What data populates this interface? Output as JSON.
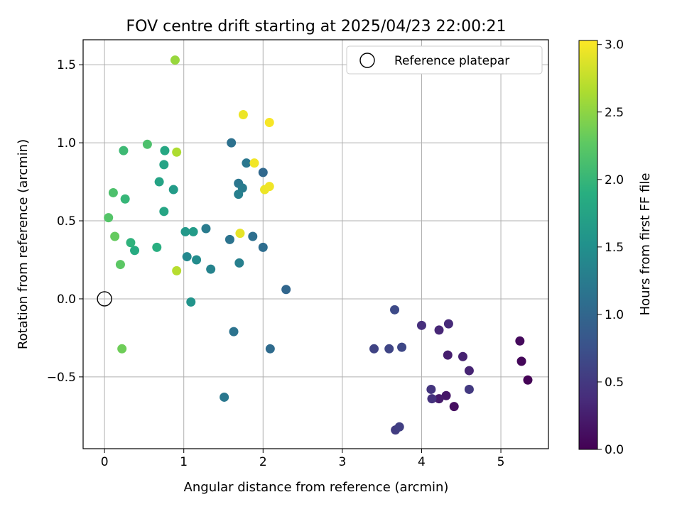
{
  "chart_data": {
    "type": "scatter",
    "title": "FOV centre drift starting at 2025/04/23 22:00:21",
    "xlabel": "Angular distance from reference (arcmin)",
    "ylabel": "Rotation from reference (arcmin)",
    "xlim": [
      -0.27,
      5.6
    ],
    "ylim": [
      -0.96,
      1.66
    ],
    "x_ticks": [
      0,
      1,
      2,
      3,
      4,
      5
    ],
    "x_tick_labels": [
      "0",
      "1",
      "2",
      "3",
      "4",
      "5"
    ],
    "y_ticks": [
      -0.5,
      0.0,
      0.5,
      1.0,
      1.5
    ],
    "y_tick_labels": [
      "−0.5",
      "0.0",
      "0.5",
      "1.0",
      "1.5"
    ],
    "grid": true,
    "legend": {
      "position": "top-right",
      "entries": [
        "Reference platepar"
      ]
    },
    "reference_point": {
      "x": 0,
      "y": 0
    },
    "colorbar": {
      "label": "Hours from first FF file",
      "colormap": "viridis",
      "range": [
        0,
        3.03
      ],
      "ticks": [
        0.0,
        0.5,
        1.0,
        1.5,
        2.0,
        2.5,
        3.0
      ],
      "tick_labels": [
        "0.0",
        "0.5",
        "1.0",
        "1.5",
        "2.0",
        "2.5",
        "3.0"
      ]
    },
    "points": [
      {
        "x": 5.34,
        "y": -0.52,
        "c": 0.02
      },
      {
        "x": 5.26,
        "y": -0.4,
        "c": 0.05
      },
      {
        "x": 5.24,
        "y": -0.27,
        "c": 0.08
      },
      {
        "x": 4.41,
        "y": -0.69,
        "c": 0.12
      },
      {
        "x": 4.31,
        "y": -0.62,
        "c": 0.18
      },
      {
        "x": 4.22,
        "y": -0.64,
        "c": 0.22
      },
      {
        "x": 4.33,
        "y": -0.36,
        "c": 0.25
      },
      {
        "x": 4.52,
        "y": -0.37,
        "c": 0.28
      },
      {
        "x": 4.6,
        "y": -0.46,
        "c": 0.3
      },
      {
        "x": 4.22,
        "y": -0.2,
        "c": 0.33
      },
      {
        "x": 4.34,
        "y": -0.16,
        "c": 0.36
      },
      {
        "x": 4.0,
        "y": -0.17,
        "c": 0.4
      },
      {
        "x": 4.13,
        "y": -0.64,
        "c": 0.43
      },
      {
        "x": 4.12,
        "y": -0.58,
        "c": 0.46
      },
      {
        "x": 4.6,
        "y": -0.58,
        "c": 0.5
      },
      {
        "x": 3.67,
        "y": -0.84,
        "c": 0.53
      },
      {
        "x": 3.72,
        "y": -0.82,
        "c": 0.56
      },
      {
        "x": 3.4,
        "y": -0.32,
        "c": 0.6
      },
      {
        "x": 3.59,
        "y": -0.32,
        "c": 0.62
      },
      {
        "x": 3.75,
        "y": -0.31,
        "c": 0.65
      },
      {
        "x": 3.66,
        "y": -0.07,
        "c": 0.68
      },
      {
        "x": 2.29,
        "y": 0.06,
        "c": 1.0
      },
      {
        "x": 2.09,
        "y": -0.32,
        "c": 1.05
      },
      {
        "x": 1.63,
        "y": -0.21,
        "c": 1.15
      },
      {
        "x": 1.51,
        "y": -0.63,
        "c": 1.2
      },
      {
        "x": 2.0,
        "y": 0.81,
        "c": 1.02
      },
      {
        "x": 2.0,
        "y": 0.33,
        "c": 1.08
      },
      {
        "x": 1.87,
        "y": 0.4,
        "c": 1.1
      },
      {
        "x": 1.7,
        "y": 0.23,
        "c": 1.3
      },
      {
        "x": 1.58,
        "y": 0.38,
        "c": 1.15
      },
      {
        "x": 1.6,
        "y": 1.0,
        "c": 1.12
      },
      {
        "x": 1.79,
        "y": 0.87,
        "c": 1.2
      },
      {
        "x": 1.69,
        "y": 0.74,
        "c": 1.18
      },
      {
        "x": 1.74,
        "y": 0.71,
        "c": 1.25
      },
      {
        "x": 1.69,
        "y": 0.67,
        "c": 1.3
      },
      {
        "x": 1.28,
        "y": 0.45,
        "c": 1.25
      },
      {
        "x": 1.34,
        "y": 0.19,
        "c": 1.35
      },
      {
        "x": 1.04,
        "y": 0.27,
        "c": 1.4
      },
      {
        "x": 1.16,
        "y": 0.25,
        "c": 1.45
      },
      {
        "x": 1.12,
        "y": 0.43,
        "c": 1.65
      },
      {
        "x": 1.02,
        "y": 0.43,
        "c": 1.6
      },
      {
        "x": 1.09,
        "y": -0.02,
        "c": 1.55
      },
      {
        "x": 0.87,
        "y": 0.7,
        "c": 1.65
      },
      {
        "x": 0.75,
        "y": 0.86,
        "c": 1.75
      },
      {
        "x": 0.76,
        "y": 0.95,
        "c": 1.8
      },
      {
        "x": 0.69,
        "y": 0.75,
        "c": 1.75
      },
      {
        "x": 0.75,
        "y": 0.56,
        "c": 1.78
      },
      {
        "x": 0.66,
        "y": 0.33,
        "c": 1.9
      },
      {
        "x": 0.38,
        "y": 0.31,
        "c": 1.85
      },
      {
        "x": 0.33,
        "y": 0.36,
        "c": 1.95
      },
      {
        "x": 0.26,
        "y": 0.64,
        "c": 2.0
      },
      {
        "x": 0.24,
        "y": 0.95,
        "c": 2.05
      },
      {
        "x": 0.54,
        "y": 0.99,
        "c": 2.15
      },
      {
        "x": 0.11,
        "y": 0.68,
        "c": 2.15
      },
      {
        "x": 0.05,
        "y": 0.52,
        "c": 2.2
      },
      {
        "x": 0.13,
        "y": 0.4,
        "c": 2.3
      },
      {
        "x": 0.2,
        "y": 0.22,
        "c": 2.25
      },
      {
        "x": 0.22,
        "y": -0.32,
        "c": 2.35
      },
      {
        "x": 0.89,
        "y": 1.53,
        "c": 2.55
      },
      {
        "x": 0.91,
        "y": 0.94,
        "c": 2.65
      },
      {
        "x": 0.91,
        "y": 0.18,
        "c": 2.7
      },
      {
        "x": 1.75,
        "y": 1.18,
        "c": 2.95
      },
      {
        "x": 2.08,
        "y": 1.13,
        "c": 3.0
      },
      {
        "x": 1.89,
        "y": 0.87,
        "c": 2.98
      },
      {
        "x": 2.02,
        "y": 0.7,
        "c": 2.95
      },
      {
        "x": 2.08,
        "y": 0.72,
        "c": 2.97
      },
      {
        "x": 1.71,
        "y": 0.42,
        "c": 2.92
      }
    ]
  }
}
